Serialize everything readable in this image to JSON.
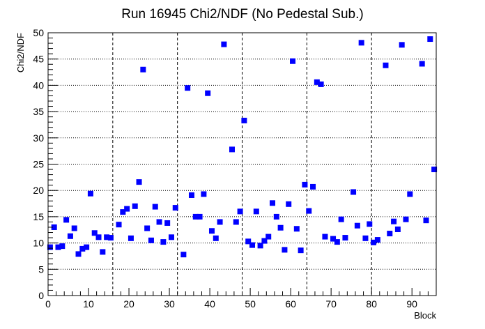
{
  "chart_data": {
    "type": "scatter",
    "title": "Run 16945 Chi2/NDF (No Pedestal Sub.)",
    "xlabel": "Block",
    "ylabel": "Chi2/NDF",
    "xlim": [
      0,
      96
    ],
    "ylim": [
      0,
      50
    ],
    "x_major_ticks": [
      0,
      10,
      20,
      30,
      40,
      50,
      60,
      70,
      80,
      90
    ],
    "y_major_ticks": [
      0,
      5,
      10,
      15,
      20,
      25,
      30,
      35,
      40,
      45,
      50
    ],
    "vertical_grid_lines": [
      16,
      32,
      48,
      64,
      80
    ],
    "horizontal_grid": true,
    "marker": "square",
    "series": [
      {
        "color": "#0000ff",
        "x": [
          0.5,
          1.5,
          2.5,
          3.5,
          4.5,
          5.5,
          6.5,
          7.5,
          8.5,
          9.5,
          10.5,
          11.5,
          12.5,
          13.5,
          14.5,
          15.5,
          17.5,
          18.5,
          19.5,
          20.5,
          21.5,
          22.5,
          23.5,
          24.5,
          25.5,
          26.5,
          27.5,
          28.5,
          29.5,
          30.5,
          31.5,
          33.5,
          34.5,
          35.5,
          36.5,
          37.5,
          38.5,
          39.5,
          40.5,
          41.5,
          42.5,
          43.5,
          45.5,
          46.5,
          47.5,
          48.5,
          49.5,
          50.5,
          51.5,
          52.5,
          53.5,
          54.5,
          55.5,
          56.5,
          57.5,
          58.5,
          59.5,
          60.5,
          61.5,
          62.5,
          63.5,
          64.5,
          65.5,
          66.5,
          67.5,
          68.5,
          70.5,
          71.5,
          72.5,
          73.5,
          75.5,
          76.5,
          77.5,
          78.5,
          79.5,
          80.5,
          81.5,
          83.5,
          84.5,
          85.5,
          86.5,
          87.5,
          88.5,
          89.5,
          92.5,
          93.5,
          94.5,
          95.5
        ],
        "y": [
          9.2,
          13.0,
          9.2,
          9.4,
          14.4,
          11.3,
          12.8,
          7.9,
          8.9,
          9.2,
          19.4,
          11.9,
          11.1,
          8.3,
          11.1,
          11.0,
          13.5,
          15.9,
          16.5,
          10.9,
          17.0,
          21.6,
          43.0,
          12.8,
          10.5,
          16.9,
          14.0,
          10.2,
          13.8,
          11.1,
          16.7,
          7.8,
          39.5,
          19.1,
          15.0,
          15.0,
          19.3,
          38.5,
          12.3,
          10.9,
          14.0,
          47.8,
          27.8,
          14.0,
          16.0,
          33.3,
          10.3,
          9.6,
          16.0,
          9.5,
          10.4,
          11.2,
          17.6,
          15.0,
          12.9,
          8.7,
          17.4,
          44.6,
          12.7,
          8.6,
          21.1,
          16.1,
          20.7,
          40.6,
          40.2,
          11.2,
          10.8,
          10.2,
          14.5,
          11.0,
          19.7,
          13.3,
          48.1,
          10.9,
          13.6,
          10.1,
          10.6,
          43.8,
          11.8,
          14.1,
          12.6,
          47.7,
          14.5,
          19.3,
          44.1,
          14.3,
          48.8,
          24.0
        ]
      }
    ]
  }
}
